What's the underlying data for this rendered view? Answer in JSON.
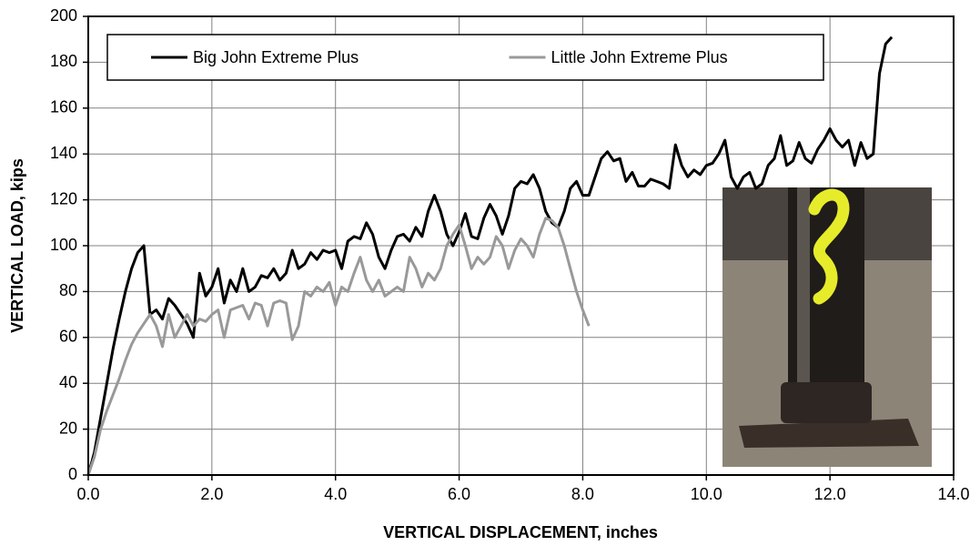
{
  "chart_data": {
    "type": "line",
    "xlabel": "VERTICAL DISPLACEMENT, inches",
    "ylabel": "VERTICAL LOAD, kips",
    "x": [
      0.0,
      0.1,
      0.2,
      0.3,
      0.4,
      0.5,
      0.6,
      0.7,
      0.8,
      0.9,
      1.0,
      1.1,
      1.2,
      1.3,
      1.4,
      1.5,
      1.6,
      1.7,
      1.8,
      1.9,
      2.0,
      2.1,
      2.2,
      2.3,
      2.4,
      2.5,
      2.6,
      2.7,
      2.8,
      2.9,
      3.0,
      3.1,
      3.2,
      3.3,
      3.4,
      3.5,
      3.6,
      3.7,
      3.8,
      3.9,
      4.0,
      4.1,
      4.2,
      4.3,
      4.4,
      4.5,
      4.6,
      4.7,
      4.8,
      4.9,
      5.0,
      5.1,
      5.2,
      5.3,
      5.4,
      5.5,
      5.6,
      5.7,
      5.8,
      5.9,
      6.0,
      6.1,
      6.2,
      6.3,
      6.4,
      6.5,
      6.6,
      6.7,
      6.8,
      6.9,
      7.0,
      7.1,
      7.2,
      7.3,
      7.4,
      7.5,
      7.6,
      7.7,
      7.8,
      7.9,
      8.0,
      8.1,
      8.2,
      8.3,
      8.4,
      8.5,
      8.6,
      8.7,
      8.8,
      8.9,
      9.0,
      9.1,
      9.2,
      9.3,
      9.4,
      9.5,
      9.6,
      9.7,
      9.8,
      9.9,
      10.0,
      10.1,
      10.2,
      10.3,
      10.4,
      10.5,
      10.6,
      10.7,
      10.8,
      10.9,
      11.0,
      11.1,
      11.2,
      11.3,
      11.4,
      11.5,
      11.6,
      11.7,
      11.8,
      11.9,
      12.0,
      12.1,
      12.2,
      12.3,
      12.4,
      12.5,
      12.6,
      12.7,
      12.8,
      12.9,
      13.0
    ],
    "series": [
      {
        "name": "Big John Extreme Plus",
        "color": "#000000",
        "values": [
          0,
          10,
          25,
          40,
          55,
          68,
          80,
          90,
          97,
          100,
          70,
          72,
          68,
          77,
          74,
          70,
          66,
          60,
          88,
          78,
          82,
          90,
          75,
          85,
          80,
          90,
          80,
          82,
          87,
          86,
          90,
          85,
          88,
          98,
          90,
          92,
          97,
          94,
          98,
          97,
          98,
          90,
          102,
          104,
          103,
          110,
          105,
          95,
          90,
          98,
          104,
          105,
          102,
          108,
          104,
          115,
          122,
          115,
          105,
          100,
          106,
          114,
          104,
          103,
          112,
          118,
          113,
          105,
          113,
          125,
          128,
          127,
          131,
          125,
          115,
          110,
          108,
          115,
          125,
          128,
          122,
          122,
          130,
          138,
          141,
          137,
          138,
          128,
          132,
          126,
          126,
          129,
          128,
          127,
          125,
          144,
          135,
          130,
          133,
          131,
          135,
          136,
          140,
          146,
          130,
          125,
          130,
          132,
          125,
          127,
          135,
          138,
          148,
          135,
          137,
          145,
          138,
          136,
          142,
          146,
          151,
          146,
          143,
          146,
          135,
          145,
          138,
          140,
          175,
          188,
          191
        ]
      },
      {
        "name": "Little John Extreme Plus",
        "color": "#999999",
        "values": [
          0,
          8,
          20,
          28,
          35,
          42,
          50,
          57,
          62,
          66,
          70,
          65,
          56,
          70,
          60,
          65,
          70,
          65,
          68,
          67,
          70,
          72,
          60,
          72,
          73,
          74,
          68,
          75,
          74,
          65,
          75,
          76,
          75,
          59,
          65,
          80,
          78,
          82,
          80,
          84,
          74,
          82,
          80,
          88,
          95,
          85,
          80,
          85,
          78,
          80,
          82,
          80,
          95,
          90,
          82,
          88,
          85,
          90,
          100,
          105,
          109,
          100,
          90,
          95,
          92,
          95,
          104,
          100,
          90,
          98,
          103,
          100,
          95,
          105,
          112,
          111,
          108,
          100,
          90,
          80,
          72,
          65,
          null,
          null,
          null,
          null,
          null,
          null,
          null,
          null,
          null,
          null,
          null,
          null,
          null,
          null,
          null,
          null,
          null,
          null,
          null,
          null,
          null,
          null,
          null,
          null,
          null,
          null,
          null,
          null,
          null,
          null,
          null,
          null,
          null,
          null,
          null,
          null,
          null,
          null,
          null,
          null,
          null,
          null,
          null,
          null,
          null,
          null,
          null,
          null,
          null
        ]
      }
    ],
    "xlim": [
      0,
      14
    ],
    "xticks": [
      {
        "value": 0,
        "label": "0.0"
      },
      {
        "value": 2,
        "label": "2.0"
      },
      {
        "value": 4,
        "label": "4.0"
      },
      {
        "value": 6,
        "label": "6.0"
      },
      {
        "value": 8,
        "label": "8.0"
      },
      {
        "value": 10,
        "label": "10.0"
      },
      {
        "value": 12,
        "label": "12.0"
      },
      {
        "value": 14,
        "label": "14.0"
      }
    ],
    "ylim": [
      0,
      200
    ],
    "yticks": [
      0,
      20,
      40,
      60,
      80,
      100,
      120,
      140,
      160,
      180,
      200
    ],
    "grid": true,
    "legend": "upper center"
  }
}
